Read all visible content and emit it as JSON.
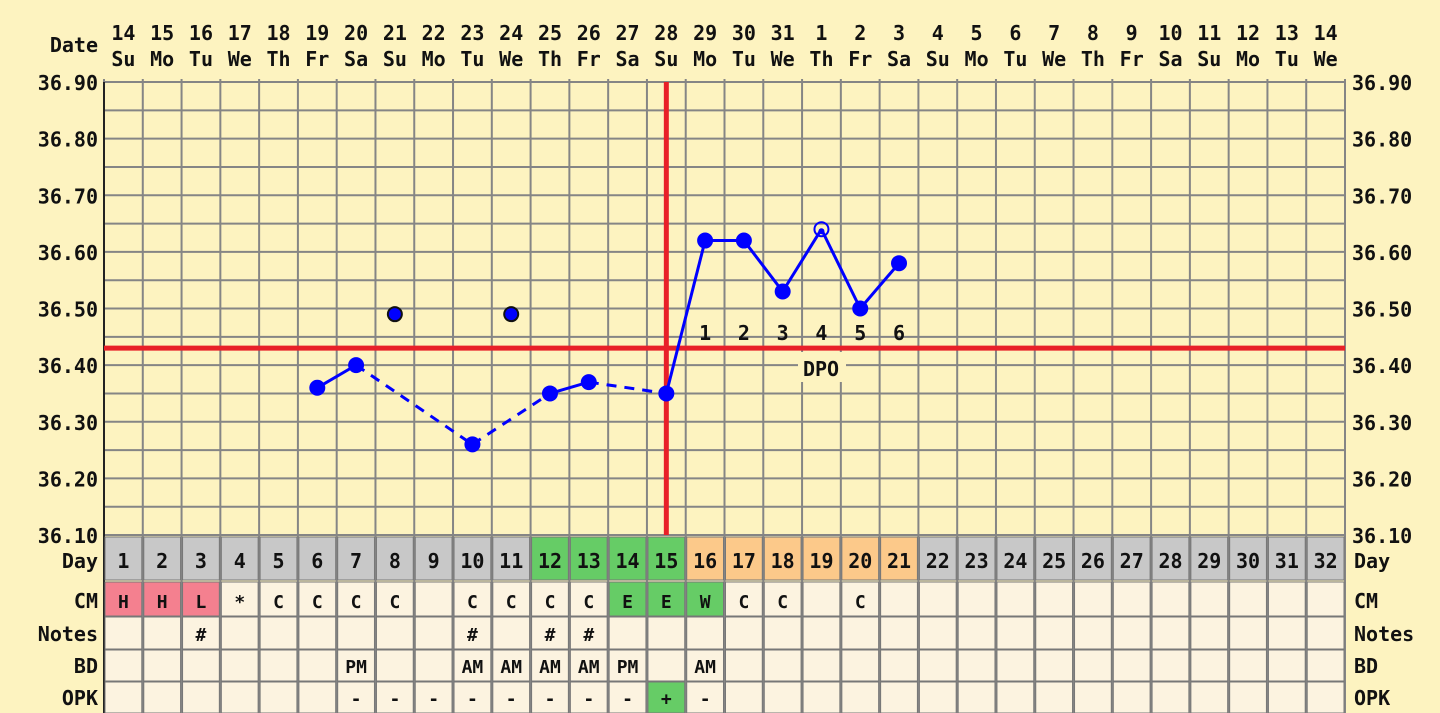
{
  "chart_data": {
    "type": "line",
    "header_label": "Date",
    "dates": [
      "14",
      "15",
      "16",
      "17",
      "18",
      "19",
      "20",
      "21",
      "22",
      "23",
      "24",
      "25",
      "26",
      "27",
      "28",
      "29",
      "30",
      "31",
      "1",
      "2",
      "3",
      "4",
      "5",
      "6",
      "7",
      "8",
      "9",
      "10",
      "11",
      "12",
      "13",
      "14"
    ],
    "weekdays": [
      "Su",
      "Mo",
      "Tu",
      "We",
      "Th",
      "Fr",
      "Sa",
      "Su",
      "Mo",
      "Tu",
      "We",
      "Th",
      "Fr",
      "Sa",
      "Su",
      "Mo",
      "Tu",
      "We",
      "Th",
      "Fr",
      "Sa",
      "Su",
      "Mo",
      "Tu",
      "We",
      "Th",
      "Fr",
      "Sa",
      "Su",
      "Mo",
      "Tu",
      "We"
    ],
    "ylim": [
      36.1,
      36.9
    ],
    "yticks": [
      "36.90",
      "36.80",
      "36.70",
      "36.60",
      "36.50",
      "36.40",
      "36.30",
      "36.20",
      "36.10"
    ],
    "grid": true,
    "temperatures": [
      {
        "day": 6,
        "temp": 36.36
      },
      {
        "day": 7,
        "temp": 36.4
      },
      {
        "day": 8,
        "temp": 36.49,
        "discarded": true
      },
      {
        "day": 10,
        "temp": 36.26
      },
      {
        "day": 11,
        "temp": 36.49,
        "discarded": true
      },
      {
        "day": 12,
        "temp": 36.35
      },
      {
        "day": 13,
        "temp": 36.37
      },
      {
        "day": 15,
        "temp": 36.35
      },
      {
        "day": 16,
        "temp": 36.62
      },
      {
        "day": 17,
        "temp": 36.62
      },
      {
        "day": 18,
        "temp": 36.53
      },
      {
        "day": 19,
        "temp": 36.64,
        "open_marker": true
      },
      {
        "day": 20,
        "temp": 36.5
      },
      {
        "day": 21,
        "temp": 36.58
      }
    ],
    "dashed_segments": [
      [
        7,
        10
      ],
      [
        10,
        12
      ],
      [
        13,
        15
      ]
    ],
    "solid_segments": [
      [
        6,
        7
      ],
      [
        12,
        13
      ],
      [
        15,
        16
      ],
      [
        16,
        17
      ],
      [
        17,
        18
      ],
      [
        18,
        19
      ],
      [
        19,
        20
      ],
      [
        20,
        21
      ]
    ],
    "coverline": 36.43,
    "ovulation_day": 15,
    "dpo_numbers": [
      {
        "day": 16,
        "label": "1"
      },
      {
        "day": 17,
        "label": "2"
      },
      {
        "day": 18,
        "label": "3"
      },
      {
        "day": 19,
        "label": "4"
      },
      {
        "day": 20,
        "label": "5"
      },
      {
        "day": 21,
        "label": "6"
      }
    ],
    "dpo_label": "DPO",
    "row_labels": {
      "day": "Day",
      "cm": "CM",
      "notes": "Notes",
      "bd": "BD",
      "opk": "OPK"
    },
    "days": [
      "1",
      "2",
      "3",
      "4",
      "5",
      "6",
      "7",
      "8",
      "9",
      "10",
      "11",
      "12",
      "13",
      "14",
      "15",
      "16",
      "17",
      "18",
      "19",
      "20",
      "21",
      "22",
      "23",
      "24",
      "25",
      "26",
      "27",
      "28",
      "29",
      "30",
      "31",
      "32"
    ],
    "fertile_days": [
      12,
      13,
      14,
      15
    ],
    "luteal_days": [
      16,
      17,
      18,
      19,
      20,
      21
    ],
    "cm": [
      "H",
      "H",
      "L",
      "*",
      "C",
      "C",
      "C",
      "C",
      "",
      "C",
      "C",
      "C",
      "C",
      "E",
      "E",
      "W",
      "C",
      "C",
      "",
      "C",
      "",
      "",
      "",
      "",
      "",
      "",
      "",
      "",
      "",
      "",
      "",
      ""
    ],
    "notes": [
      "",
      "",
      "#",
      "",
      "",
      "",
      "",
      "",
      "",
      "#",
      "",
      "#",
      "#",
      "",
      "",
      "",
      "",
      "",
      "",
      "",
      "",
      "",
      "",
      "",
      "",
      "",
      "",
      "",
      "",
      "",
      "",
      ""
    ],
    "bd": [
      "",
      "",
      "",
      "",
      "",
      "",
      "PM",
      "",
      "",
      "AM",
      "AM",
      "AM",
      "AM",
      "PM",
      "",
      "AM",
      "",
      "",
      "",
      "",
      "",
      "",
      "",
      "",
      "",
      "",
      "",
      "",
      "",
      "",
      "",
      ""
    ],
    "opk": [
      "",
      "",
      "",
      "",
      "",
      "",
      "-",
      "-",
      "-",
      "-",
      "-",
      "-",
      "-",
      "-",
      "+",
      "-",
      "",
      "",
      "",
      "",
      "",
      "",
      "",
      "",
      "",
      "",
      "",
      "",
      "",
      "",
      "",
      ""
    ]
  },
  "colors": {
    "background": "#fdf3c0",
    "grid": "#858585",
    "cell": "#fcf3e0",
    "day_row": "#c8c8c8",
    "fertile": "#66cc66",
    "luteal": "#fcc98a",
    "menses": "#f4808f",
    "temperature": "#0000ff",
    "ovulation_lines": "#e82028"
  }
}
